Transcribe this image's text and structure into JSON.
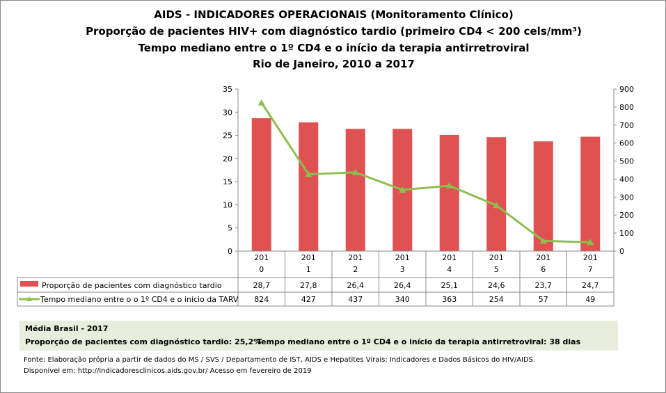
{
  "titles": [
    "AIDS - INDICADORES OPERACIONAIS (Monitoramento Clínico)",
    "Proporção de pacientes HIV+ com diagnóstico tardio (primeiro CD4 < 200 cels/mm³)",
    "Tempo mediano entre o 1º CD4 e o início da terapia antirretroviral",
    "Rio de Janeiro, 2010 a 2017"
  ],
  "chart_data": {
    "type": "bar+line",
    "categories": [
      "2010",
      "2011",
      "2012",
      "2013",
      "2014",
      "2015",
      "2016",
      "2017"
    ],
    "category_labels": [
      [
        "201",
        "0"
      ],
      [
        "201",
        "1"
      ],
      [
        "201",
        "2"
      ],
      [
        "201",
        "3"
      ],
      [
        "201",
        "4"
      ],
      [
        "201",
        "5"
      ],
      [
        "201",
        "6"
      ],
      [
        "201",
        "7"
      ]
    ],
    "series": [
      {
        "name": "Proporção de pacientes com diagnóstico tardio",
        "type": "bar",
        "axis": "left",
        "color": "#e05152",
        "values": [
          28.7,
          27.8,
          26.4,
          26.4,
          25.1,
          24.6,
          23.7,
          24.7
        ],
        "labels": [
          "28,7",
          "27,8",
          "26,4",
          "26,4",
          "25,1",
          "24,6",
          "23,7",
          "24,7"
        ]
      },
      {
        "name": "Tempo mediano entre o o 1º CD4 e o início da TARV",
        "type": "line",
        "axis": "right",
        "color": "#8dbf4f",
        "marker": "triangle",
        "values": [
          824,
          427,
          437,
          340,
          363,
          254,
          57,
          49
        ],
        "labels": [
          "824",
          "427",
          "437",
          "340",
          "363",
          "254",
          "57",
          "49"
        ]
      }
    ],
    "y_left": {
      "range": [
        0,
        35
      ],
      "ticks": [
        0,
        5,
        10,
        15,
        20,
        25,
        30,
        35
      ]
    },
    "y_right": {
      "range": [
        0,
        900
      ],
      "ticks": [
        0,
        100,
        200,
        300,
        400,
        500,
        600,
        700,
        800,
        900
      ]
    },
    "grid": false,
    "legend": "data-table"
  },
  "media": {
    "title": "Média Brasil - 2017",
    "prop": "Proporção de pacientes com diagnóstico  tardio: 25,2%",
    "tempo": "Tempo mediano entre o 1º CD4 e o início da terapia antirretroviral: 38 dias"
  },
  "source": [
    "Fonte: Elaboração própria a partir de dados do  MS / SVS / Departamento de IST, AIDS e Hepatites Virais: Indicadores e Dados Básicos do HIV/AIDS.",
    "Disponível em: http://indicadoresclinicos.aids.gov.br/ Acesso em fevereiro de 2019"
  ]
}
